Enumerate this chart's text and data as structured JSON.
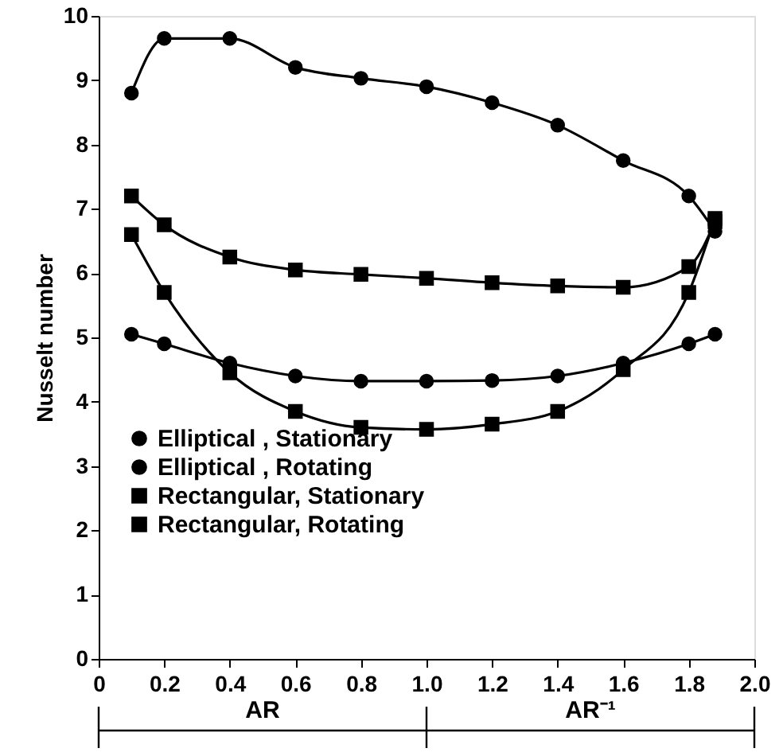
{
  "chart_data": {
    "type": "line",
    "ylabel": "Nusselt number",
    "x": [
      0.1,
      0.2,
      0.4,
      0.6,
      0.8,
      1.0,
      1.2,
      1.4,
      1.6,
      1.8,
      1.88
    ],
    "xlim": [
      0,
      2
    ],
    "ylim": [
      0,
      10
    ],
    "xticks": [
      0,
      0.2,
      0.4,
      0.6,
      0.8,
      {
        "value": 1,
        "label": "1.0"
      },
      1.2,
      1.4,
      1.6,
      1.8,
      {
        "value": 2,
        "label": "2.0"
      }
    ],
    "yticks": [
      0,
      1,
      2,
      3,
      4,
      5,
      6,
      7,
      8,
      9,
      10
    ],
    "grid": false,
    "legend": "bottom left",
    "line_style": "solid",
    "annotations": [
      "AR",
      "AR⁻¹"
    ],
    "series": [
      {
        "name": "Elliptical , Stationary",
        "color": "#000000",
        "marker": "circle",
        "values": [
          5.05,
          4.9,
          4.6,
          4.4,
          4.32,
          4.32,
          4.33,
          4.4,
          4.6,
          4.9,
          5.05
        ]
      },
      {
        "name": "Elliptical , Rotating",
        "color": "#000000",
        "marker": "circle",
        "values": [
          8.8,
          9.65,
          9.65,
          9.2,
          9.03,
          8.9,
          8.65,
          8.3,
          7.75,
          7.2,
          6.65
        ]
      },
      {
        "name": "Rectangular, Stationary",
        "color": "#000000",
        "marker": "square",
        "values": [
          6.6,
          5.7,
          4.45,
          3.85,
          3.6,
          3.57,
          3.65,
          3.85,
          4.5,
          5.7,
          6.85
        ]
      },
      {
        "name": "Rectangular, Rotating",
        "color": "#000000",
        "marker": "square",
        "values": [
          7.2,
          6.75,
          6.25,
          6.05,
          5.98,
          5.92,
          5.85,
          5.8,
          5.78,
          6.1,
          6.8
        ]
      }
    ]
  }
}
